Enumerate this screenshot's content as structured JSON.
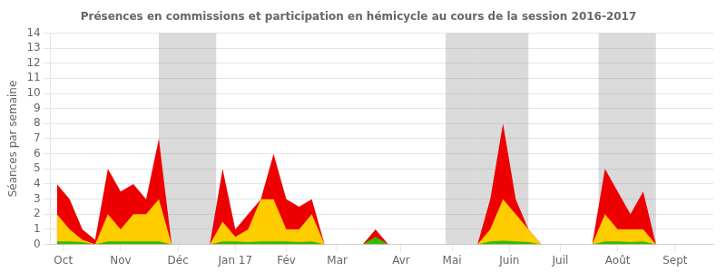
{
  "chart_data": {
    "type": "area",
    "title": "Présences en commissions et participation en hémicycle au cours de la session 2016-2017",
    "ylabel": "Séances par semaine",
    "x": [
      0,
      1,
      2,
      3,
      4,
      5,
      6,
      7,
      8,
      9,
      10,
      11,
      12,
      13,
      14,
      15,
      16,
      17,
      18,
      19,
      20,
      21,
      22,
      23,
      24,
      25,
      26,
      27,
      28,
      29,
      30,
      31,
      32,
      33,
      34,
      35,
      36,
      37,
      38,
      39,
      40,
      41,
      42,
      43,
      44,
      45,
      46,
      47,
      48,
      49,
      50,
      51
    ],
    "xlim": [
      -0.5,
      51.5
    ],
    "xticks": [
      {
        "value": 0.5,
        "label": "Oct"
      },
      {
        "value": 5,
        "label": "Nov"
      },
      {
        "value": 9.5,
        "label": "Déc"
      },
      {
        "value": 14,
        "label": "Jan 17"
      },
      {
        "value": 18,
        "label": "Fév"
      },
      {
        "value": 22,
        "label": "Mar"
      },
      {
        "value": 27,
        "label": "Avr"
      },
      {
        "value": 31,
        "label": "Mai"
      },
      {
        "value": 35.5,
        "label": "Juin"
      },
      {
        "value": 39.5,
        "label": "Juil"
      },
      {
        "value": 44,
        "label": "Août"
      },
      {
        "value": 48.5,
        "label": "Sept"
      }
    ],
    "ylim": [
      0,
      14
    ],
    "yticks": [
      0,
      1,
      2,
      3,
      4,
      5,
      6,
      7,
      8,
      9,
      10,
      11,
      12,
      13,
      14
    ],
    "grid": true,
    "bands": [
      [
        8.0,
        12.5
      ],
      [
        30.5,
        33.0
      ],
      [
        33.0,
        37.0
      ],
      [
        42.5,
        47.0
      ]
    ],
    "series": [
      {
        "color": "#ee0000",
        "values": [
          4,
          3,
          1,
          0.3,
          5,
          3.5,
          4,
          3,
          7,
          0,
          0,
          0,
          0,
          5,
          1,
          2,
          3,
          6,
          3,
          2.5,
          3,
          0,
          0,
          0,
          0,
          1,
          0,
          0,
          0,
          0,
          0,
          0,
          0,
          0,
          3,
          8,
          3,
          1,
          0,
          0,
          0,
          0,
          0,
          5,
          3.5,
          2,
          3.5,
          0,
          0,
          0,
          0,
          0
        ]
      },
      {
        "color": "#ffcc00",
        "values": [
          2,
          1,
          0.3,
          0,
          2,
          1,
          2,
          2,
          3,
          0,
          0,
          0,
          0,
          1.5,
          0.5,
          1,
          3,
          3,
          1,
          1,
          2,
          0,
          0,
          0,
          0,
          0,
          0,
          0,
          0,
          0,
          0,
          0,
          0,
          0,
          1,
          3,
          2,
          1,
          0,
          0,
          0,
          0,
          0,
          2,
          1,
          1,
          1,
          0,
          0,
          0,
          0,
          0
        ]
      },
      {
        "color": "#33bb00",
        "values": [
          0.2,
          0.2,
          0.15,
          0,
          0.2,
          0.2,
          0.2,
          0.2,
          0.2,
          0,
          0,
          0,
          0,
          0.2,
          0.2,
          0.15,
          0.2,
          0.2,
          0.2,
          0.15,
          0.2,
          0,
          0,
          0,
          0,
          0.5,
          0,
          0,
          0,
          0,
          0,
          0,
          0,
          0,
          0.2,
          0.25,
          0.2,
          0.15,
          0,
          0,
          0,
          0,
          0,
          0.2,
          0.2,
          0.15,
          0.2,
          0,
          0,
          0,
          0,
          0
        ]
      }
    ]
  }
}
